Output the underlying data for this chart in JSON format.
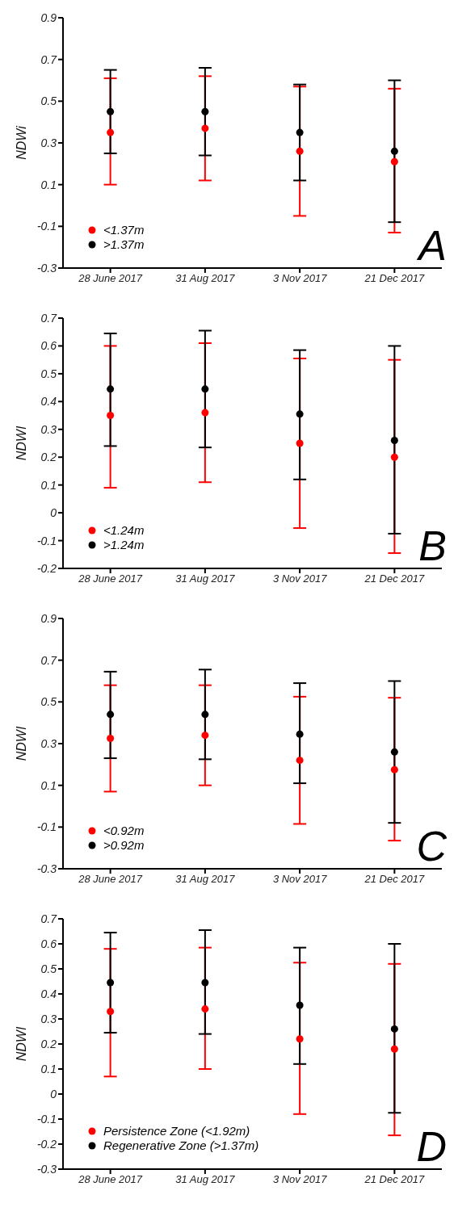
{
  "chart_data": [
    {
      "type": "scatter",
      "ylabel": "NDWi",
      "categories": [
        "28 June 2017",
        "31 Aug 2017",
        "3 Nov 2017",
        "21 Dec 2017"
      ],
      "ylim": [
        -0.3,
        0.9
      ],
      "yticks": [
        -0.3,
        -0.1,
        0.1,
        0.3,
        0.5,
        0.7,
        0.9
      ],
      "legend": "bottom left",
      "grid": false,
      "marker": "circle",
      "annotations": [
        "A"
      ],
      "series": [
        {
          "name": "<1.37m",
          "color": "#ff0000",
          "values": [
            0.35,
            0.37,
            0.26,
            0.21
          ],
          "errors": [
            [
              0.1,
              0.61
            ],
            [
              0.12,
              0.62
            ],
            [
              -0.05,
              0.57
            ],
            [
              -0.13,
              0.56
            ]
          ]
        },
        {
          "name": ">1.37m",
          "color": "#000000",
          "values": [
            0.45,
            0.45,
            0.35,
            0.26
          ],
          "errors": [
            [
              0.25,
              0.65
            ],
            [
              0.24,
              0.66
            ],
            [
              0.12,
              0.58
            ],
            [
              -0.08,
              0.6
            ]
          ]
        }
      ]
    },
    {
      "type": "scatter",
      "ylabel": "NDWI",
      "categories": [
        "28 June 2017",
        "31 Aug 2017",
        "3 Nov 2017",
        "21 Dec 2017"
      ],
      "ylim": [
        -0.2,
        0.7
      ],
      "yticks": [
        -0.2,
        -0.1,
        0,
        0.1,
        0.2,
        0.3,
        0.4,
        0.5,
        0.6,
        0.7
      ],
      "legend": "bottom left",
      "grid": false,
      "marker": "circle",
      "annotations": [
        "B"
      ],
      "series": [
        {
          "name": "<1.24m",
          "color": "#ff0000",
          "values": [
            0.35,
            0.36,
            0.25,
            0.2
          ],
          "errors": [
            [
              0.09,
              0.6
            ],
            [
              0.11,
              0.61
            ],
            [
              -0.055,
              0.555
            ],
            [
              -0.145,
              0.55
            ]
          ]
        },
        {
          "name": ">1.24m",
          "color": "#000000",
          "values": [
            0.445,
            0.445,
            0.355,
            0.26
          ],
          "errors": [
            [
              0.24,
              0.645
            ],
            [
              0.235,
              0.655
            ],
            [
              0.12,
              0.585
            ],
            [
              -0.075,
              0.6
            ]
          ]
        }
      ]
    },
    {
      "type": "scatter",
      "ylabel": "NDWI",
      "categories": [
        "28 June 2017",
        "31 Aug 2017",
        "3 Nov 2017",
        "21 Dec 2017"
      ],
      "ylim": [
        -0.3,
        0.9
      ],
      "yticks": [
        -0.3,
        -0.1,
        0.1,
        0.3,
        0.5,
        0.7,
        0.9
      ],
      "legend": "bottom left",
      "grid": false,
      "marker": "circle",
      "annotations": [
        "C"
      ],
      "series": [
        {
          "name": "<0.92m",
          "color": "#ff0000",
          "values": [
            0.325,
            0.34,
            0.22,
            0.175
          ],
          "errors": [
            [
              0.07,
              0.58
            ],
            [
              0.1,
              0.58
            ],
            [
              -0.085,
              0.525
            ],
            [
              -0.165,
              0.52
            ]
          ]
        },
        {
          "name": ">0.92m",
          "color": "#000000",
          "values": [
            0.44,
            0.44,
            0.345,
            0.26
          ],
          "errors": [
            [
              0.23,
              0.645
            ],
            [
              0.225,
              0.655
            ],
            [
              0.11,
              0.59
            ],
            [
              -0.08,
              0.6
            ]
          ]
        }
      ]
    },
    {
      "type": "scatter",
      "ylabel": "NDWI",
      "categories": [
        "28 June 2017",
        "31 Aug 2017",
        "3 Nov 2017",
        "21 Dec 2017"
      ],
      "ylim": [
        -0.3,
        0.7
      ],
      "yticks": [
        -0.3,
        -0.2,
        -0.1,
        0,
        0.1,
        0.2,
        0.3,
        0.4,
        0.5,
        0.6,
        0.7
      ],
      "legend": "bottom left",
      "grid": false,
      "marker": "circle",
      "annotations": [
        "D"
      ],
      "series": [
        {
          "name": "Persistence Zone (<1.92m)",
          "color": "#ff0000",
          "values": [
            0.33,
            0.34,
            0.22,
            0.18
          ],
          "errors": [
            [
              0.07,
              0.58
            ],
            [
              0.1,
              0.585
            ],
            [
              -0.08,
              0.525
            ],
            [
              -0.165,
              0.52
            ]
          ]
        },
        {
          "name": "Regenerative Zone (>1.37m)",
          "color": "#000000",
          "values": [
            0.445,
            0.445,
            0.355,
            0.26
          ],
          "errors": [
            [
              0.245,
              0.645
            ],
            [
              0.24,
              0.655
            ],
            [
              0.12,
              0.585
            ],
            [
              -0.075,
              0.6
            ]
          ]
        }
      ]
    }
  ]
}
